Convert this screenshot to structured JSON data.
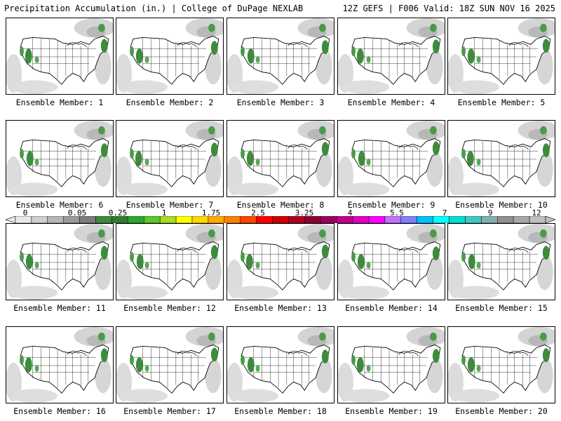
{
  "header": {
    "title": "Precipitation Accumulation (in.) | College of DuPage NEXLAB",
    "run_info": "12Z GEFS | F006 Valid: 18Z SUN NOV 16 2025"
  },
  "panels": [
    {
      "label": "Ensemble Member: 1"
    },
    {
      "label": "Ensemble Member: 2"
    },
    {
      "label": "Ensemble Member: 3"
    },
    {
      "label": "Ensemble Member: 4"
    },
    {
      "label": "Ensemble Member: 5"
    },
    {
      "label": "Ensemble Member: 6"
    },
    {
      "label": "Ensemble Member: 7"
    },
    {
      "label": "Ensemble Member: 8"
    },
    {
      "label": "Ensemble Member: 9"
    },
    {
      "label": "Ensemble Member: 10"
    },
    {
      "label": "Ensemble Member: 11"
    },
    {
      "label": "Ensemble Member: 12"
    },
    {
      "label": "Ensemble Member: 13"
    },
    {
      "label": "Ensemble Member: 14"
    },
    {
      "label": "Ensemble Member: 15"
    },
    {
      "label": "Ensemble Member: 16"
    },
    {
      "label": "Ensemble Member: 17"
    },
    {
      "label": "Ensemble Member: 18"
    },
    {
      "label": "Ensemble Member: 19"
    },
    {
      "label": "Ensemble Member: 20"
    }
  ],
  "colorbar": {
    "labels": [
      "0",
      "0.05",
      "0.25",
      "1",
      "1.75",
      "2.5",
      "3.25",
      "4",
      "5.5",
      "7",
      "9",
      "12"
    ],
    "colors": [
      "#e8e8e8",
      "#cfcfcf",
      "#b5b5b5",
      "#9a9a9a",
      "#7d7d7d",
      "#3c8c3c",
      "#2e7d2e",
      "#2fa62f",
      "#5cc82a",
      "#a6dc28",
      "#ffff00",
      "#ffd700",
      "#ffaa00",
      "#ff7f00",
      "#ff4500",
      "#ff0000",
      "#d00000",
      "#b0001e",
      "#8b0030",
      "#9c0060",
      "#c0008c",
      "#e000c8",
      "#ff00ff",
      "#c070ff",
      "#7f7fff",
      "#00bfff",
      "#00ffff",
      "#00e0d0",
      "#40c8c0",
      "#80b0b0",
      "#909090",
      "#a8a8a8",
      "#c0c0c0"
    ]
  }
}
